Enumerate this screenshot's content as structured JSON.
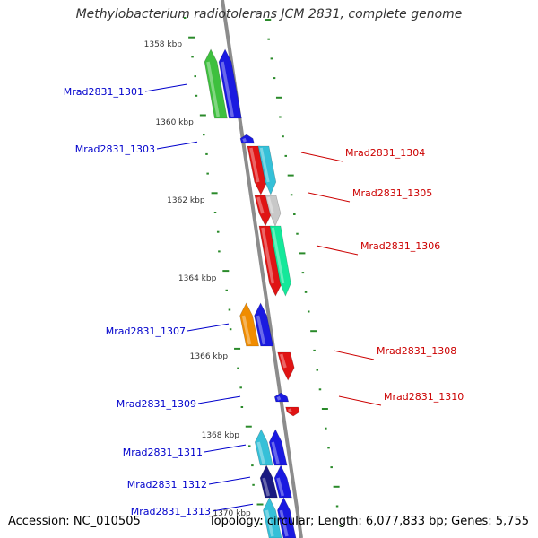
{
  "title": "Methylobacterium radiotolerans JCM 2831, complete genome",
  "accession": "Accession: NC_010505",
  "topology": "Topology: circular; Length: 6,077,833 bp; Genes: 5,755",
  "colors": {
    "forward_label": "#0000cc",
    "reverse_label": "#cc0000",
    "backbone": "#8c8c8c",
    "ticks": "#2a8a2a",
    "green": "#3ec03e",
    "blue": "#1a1ae0",
    "red": "#e01414",
    "teal": "#35c0d8",
    "mint": "#14e89a",
    "grey": "#c8c8c8",
    "orange": "#f08c00",
    "navy": "#1a1a80"
  },
  "kbp_ticks": [
    "1358 kbp",
    "1360 kbp",
    "1362 kbp",
    "1364 kbp",
    "1366 kbp",
    "1368 kbp",
    "1370 kbp"
  ],
  "genes": [
    {
      "name": "Mrad2831_1301",
      "strand": "forward",
      "pieces": [
        {
          "ring": "outer",
          "color": "green"
        },
        {
          "ring": "inner",
          "color": "blue"
        }
      ]
    },
    {
      "name": "Mrad2831_1303",
      "strand": "forward",
      "pieces": [
        {
          "ring": "inner",
          "color": "blue"
        }
      ]
    },
    {
      "name": "Mrad2831_1304",
      "strand": "reverse",
      "pieces": [
        {
          "ring": "inner",
          "color": "red"
        },
        {
          "ring": "outer",
          "color": "teal"
        }
      ]
    },
    {
      "name": "Mrad2831_1305",
      "strand": "reverse",
      "pieces": [
        {
          "ring": "inner",
          "color": "red"
        },
        {
          "ring": "outer",
          "color": "grey"
        }
      ]
    },
    {
      "name": "Mrad2831_1306",
      "strand": "reverse",
      "pieces": [
        {
          "ring": "inner",
          "color": "red"
        },
        {
          "ring": "outer",
          "color": "mint"
        }
      ]
    },
    {
      "name": "Mrad2831_1307",
      "strand": "forward",
      "pieces": [
        {
          "ring": "outer",
          "color": "orange"
        },
        {
          "ring": "inner",
          "color": "blue"
        }
      ]
    },
    {
      "name": "Mrad2831_1308",
      "strand": "reverse",
      "pieces": [
        {
          "ring": "inner",
          "color": "red"
        }
      ]
    },
    {
      "name": "Mrad2831_1309",
      "strand": "forward",
      "pieces": [
        {
          "ring": "inner",
          "color": "blue"
        }
      ]
    },
    {
      "name": "Mrad2831_1310",
      "strand": "reverse",
      "pieces": [
        {
          "ring": "inner",
          "color": "red"
        }
      ]
    },
    {
      "name": "Mrad2831_1311",
      "strand": "forward",
      "pieces": [
        {
          "ring": "outer",
          "color": "teal"
        },
        {
          "ring": "inner",
          "color": "blue"
        }
      ]
    },
    {
      "name": "Mrad2831_1312",
      "strand": "forward",
      "pieces": [
        {
          "ring": "outer",
          "color": "navy"
        },
        {
          "ring": "inner",
          "color": "blue"
        }
      ]
    },
    {
      "name": "Mrad2831_1313",
      "strand": "forward",
      "pieces": [
        {
          "ring": "outer",
          "color": "teal"
        },
        {
          "ring": "inner",
          "color": "blue"
        }
      ]
    }
  ]
}
